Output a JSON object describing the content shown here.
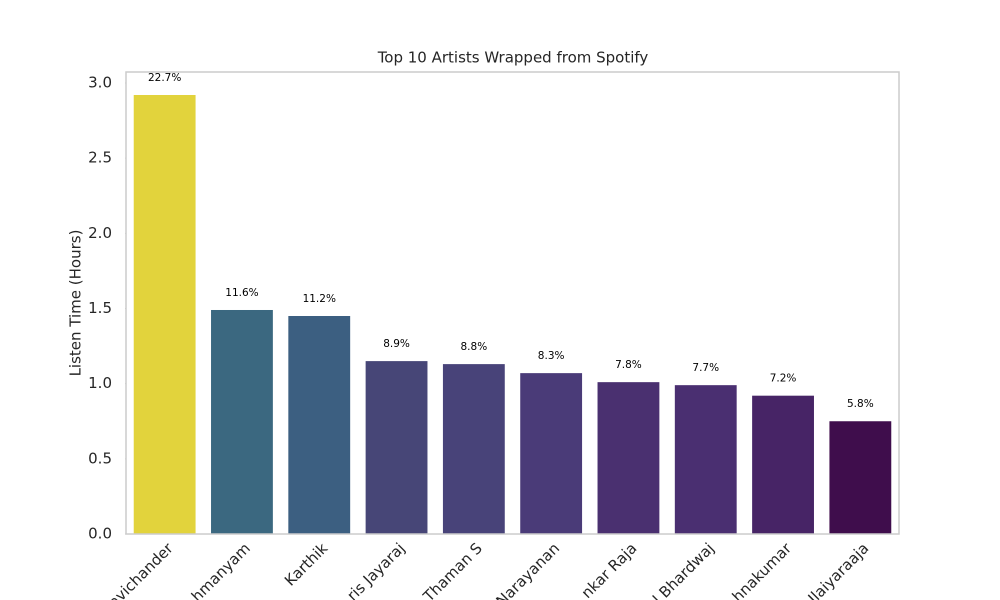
{
  "chart_data": {
    "type": "bar",
    "title": "Top 10 Artists Wrapped from Spotify",
    "y_label": "Listen Time (Hours)",
    "categories": [
      "avichander",
      "hmanyam",
      "Karthik",
      "ris Jayaraj",
      "Thaman S",
      "Narayanan",
      "nkar Raja",
      "l Bhardwaj",
      "hnakumar",
      "Ilaiyaraaja"
    ],
    "values": [
      2.92,
      1.49,
      1.45,
      1.15,
      1.13,
      1.07,
      1.01,
      0.99,
      0.92,
      0.75
    ],
    "percent": [
      22.7,
      11.6,
      11.2,
      8.9,
      8.8,
      8.3,
      7.8,
      7.7,
      7.2,
      5.8
    ],
    "percent_labels": [
      "22.7%",
      "11.6%",
      "11.2%",
      "8.9%",
      "8.8%",
      "8.3%",
      "7.8%",
      "7.7%",
      "7.2%",
      "5.8%"
    ],
    "colors": [
      "#e2d33c",
      "#3b6880",
      "#3c5f81",
      "#474677",
      "#484379",
      "#4a3b78",
      "#4a3070",
      "#4a2f71",
      "#472466",
      "#3f0d4c"
    ],
    "ylim": [
      0,
      3.073
    ],
    "yticks": [
      {
        "value": 0,
        "label": "0.0"
      },
      {
        "value": 0.5,
        "label": "0.5"
      },
      {
        "value": 1,
        "label": "1.0"
      },
      {
        "value": 1.5,
        "label": "1.5"
      },
      {
        "value": 2,
        "label": "2.0"
      },
      {
        "value": 2.5,
        "label": "2.5"
      },
      {
        "value": 3,
        "label": "3.0"
      }
    ],
    "grid": false
  }
}
